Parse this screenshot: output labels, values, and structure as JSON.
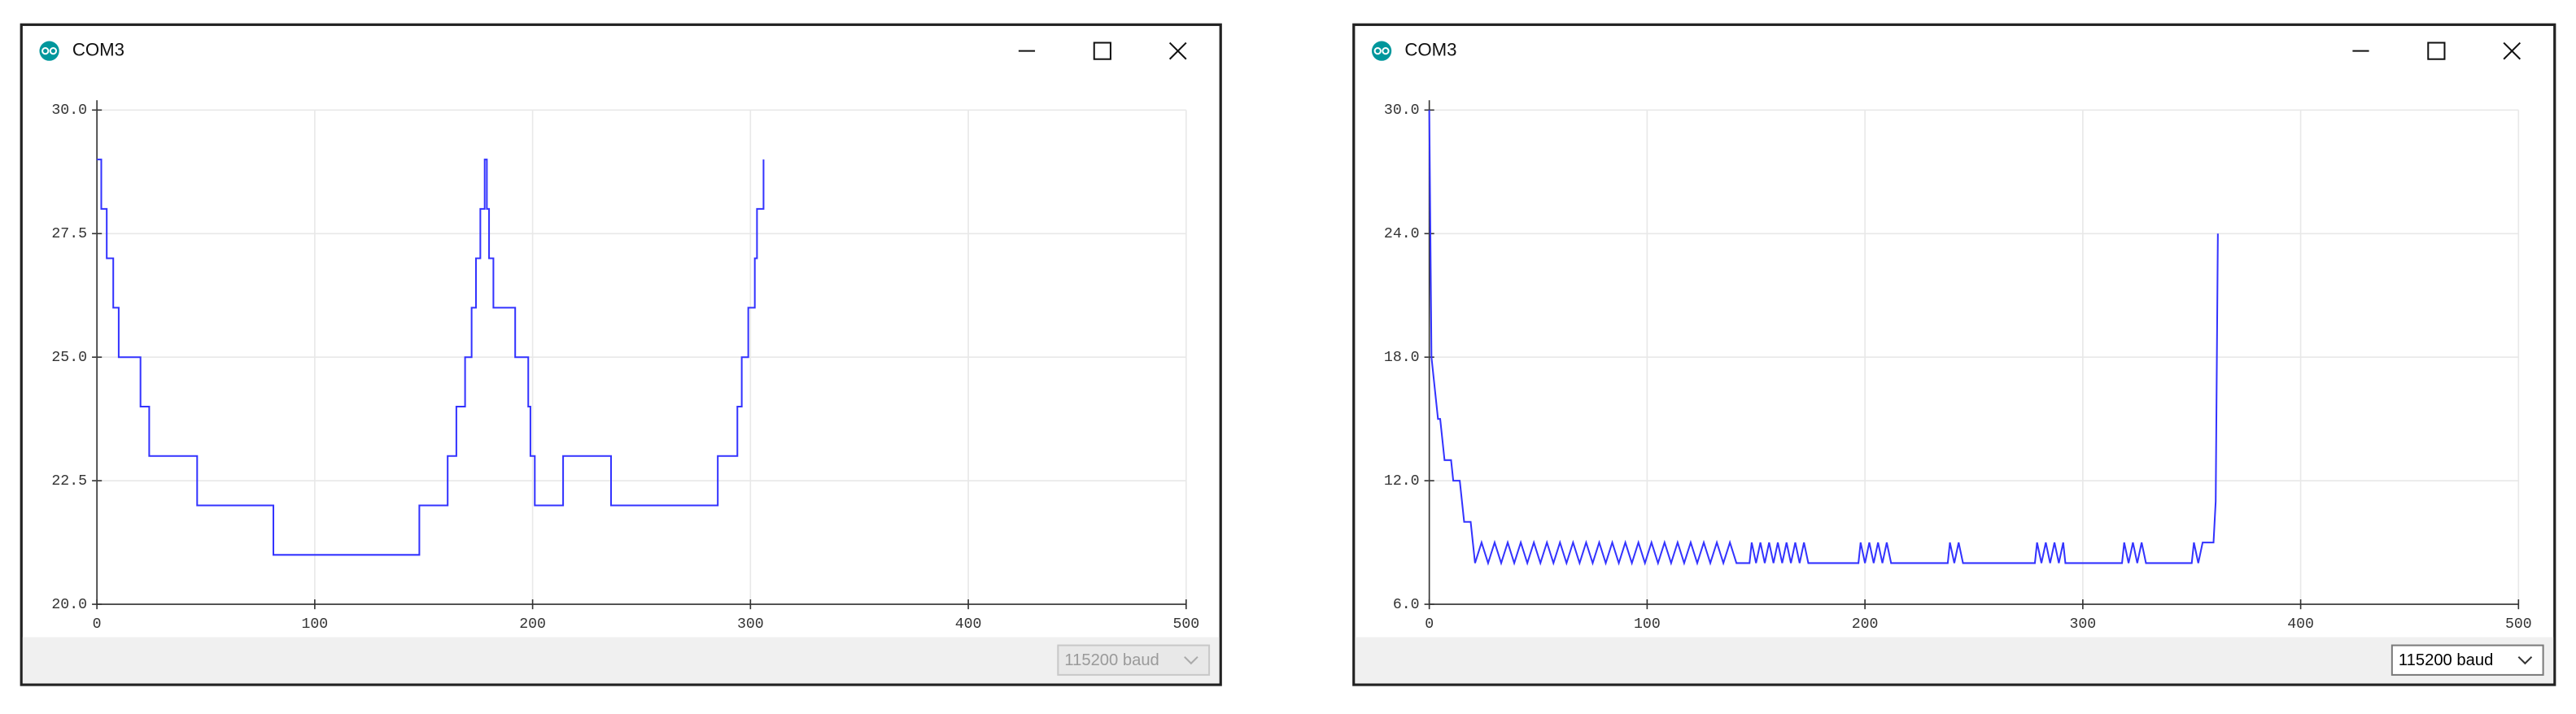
{
  "windows": [
    {
      "title": "COM3",
      "baud": "115200 baud",
      "baud_enabled": false
    },
    {
      "title": "COM3",
      "baud": "115200 baud",
      "baud_enabled": true
    }
  ],
  "chart_data": [
    {
      "type": "line",
      "grid": true,
      "xlim": [
        0,
        500
      ],
      "xticks": [
        0,
        100,
        200,
        300,
        400,
        500
      ],
      "ylim": [
        20,
        30
      ],
      "yticks": [
        {
          "value": 20,
          "label": "20.0"
        },
        {
          "value": 22.5,
          "label": "22.5"
        },
        {
          "value": 25,
          "label": "25.0"
        },
        {
          "value": 27.5,
          "label": "27.5"
        },
        {
          "value": 30,
          "label": "30.0"
        }
      ],
      "x": [
        0,
        2,
        2,
        4.5,
        4.5,
        7.5,
        7.5,
        10,
        10,
        20,
        20,
        24,
        24,
        46,
        46,
        81,
        81,
        148,
        148,
        161,
        161,
        165,
        165,
        169,
        169,
        172,
        172,
        174,
        174,
        176,
        176,
        178,
        178,
        179,
        179,
        180,
        180,
        182,
        182,
        192,
        192,
        198,
        198,
        199,
        199,
        201,
        201,
        214,
        214,
        236,
        236,
        285,
        285,
        294,
        294,
        296,
        296,
        299,
        299,
        302,
        302,
        303,
        303,
        306,
        306
      ],
      "series": [
        {
          "color": "#3333ff",
          "values": [
            29,
            29,
            28,
            28,
            27,
            27,
            26,
            26,
            25,
            25,
            24,
            24,
            23,
            23,
            22,
            22,
            21,
            21,
            22,
            22,
            23,
            23,
            24,
            24,
            25,
            25,
            26,
            26,
            27,
            27,
            28,
            28,
            29,
            29,
            28,
            28,
            27,
            27,
            26,
            26,
            25,
            25,
            24,
            24,
            23,
            23,
            22,
            22,
            23,
            23,
            22,
            22,
            23,
            23,
            24,
            24,
            25,
            25,
            26,
            26,
            27,
            27,
            28,
            28,
            29
          ]
        }
      ]
    },
    {
      "type": "line",
      "grid": true,
      "xlim": [
        0,
        500
      ],
      "xticks": [
        0,
        100,
        200,
        300,
        400,
        500
      ],
      "ylim": [
        6,
        30
      ],
      "yticks": [
        {
          "value": 6,
          "label": "6.0"
        },
        {
          "value": 12,
          "label": "12.0"
        },
        {
          "value": 18,
          "label": "18.0"
        },
        {
          "value": 24,
          "label": "24.0"
        },
        {
          "value": 30,
          "label": "30.0"
        }
      ],
      "x": [
        0,
        1,
        2,
        3,
        4,
        5,
        6,
        7,
        10,
        11,
        14,
        15,
        16,
        19,
        20,
        21,
        24,
        27,
        30,
        33,
        36,
        39,
        42,
        45,
        48,
        51,
        54,
        57,
        60,
        63,
        66,
        69,
        72,
        75,
        78,
        81,
        84,
        87,
        90,
        93,
        96,
        99,
        102,
        105,
        108,
        111,
        114,
        117,
        120,
        123,
        126,
        129,
        132,
        135,
        138,
        141,
        147,
        148,
        150,
        152,
        154,
        156,
        158,
        160,
        162,
        164,
        166,
        168,
        170,
        172,
        174,
        197,
        198,
        200,
        202,
        204,
        206,
        208,
        210,
        212,
        238,
        239,
        241,
        243,
        245,
        278,
        279,
        281,
        283,
        285,
        287,
        289,
        291,
        292,
        318,
        319,
        321,
        323,
        325,
        327,
        329,
        350,
        351,
        353,
        355,
        360,
        361,
        362
      ],
      "series": [
        {
          "color": "#3333ff",
          "values": [
            30,
            18,
            17,
            16,
            15,
            15,
            14,
            13,
            13,
            12,
            12,
            11,
            10,
            10,
            9,
            8,
            9,
            8,
            9,
            8,
            9,
            8,
            9,
            8,
            9,
            8,
            9,
            8,
            9,
            8,
            9,
            8,
            9,
            8,
            9,
            8,
            9,
            8,
            9,
            8,
            9,
            8,
            9,
            8,
            9,
            8,
            9,
            8,
            9,
            8,
            9,
            8,
            9,
            8,
            9,
            8,
            8,
            9,
            8,
            9,
            8,
            9,
            8,
            9,
            8,
            9,
            8,
            9,
            8,
            9,
            8,
            8,
            9,
            8,
            9,
            8,
            9,
            8,
            9,
            8,
            8,
            9,
            8,
            9,
            8,
            8,
            9,
            8,
            9,
            8,
            9,
            8,
            9,
            8,
            8,
            9,
            8,
            9,
            8,
            9,
            8,
            8,
            9,
            8,
            9,
            9,
            11,
            24
          ]
        }
      ]
    }
  ]
}
